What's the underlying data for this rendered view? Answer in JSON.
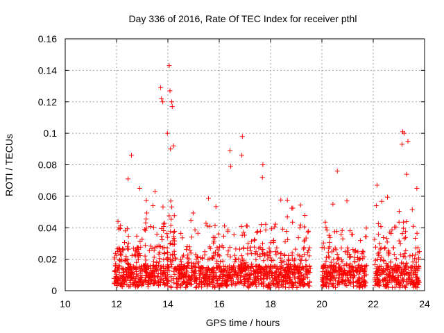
{
  "chart_data": {
    "type": "scatter",
    "title": "Day 336 of 2016, Rate Of TEC Index for receiver pthl",
    "xlabel": "GPS time / hours",
    "ylabel": "ROTI / TECUs",
    "xlim": [
      10,
      24
    ],
    "ylim": [
      0,
      0.16
    ],
    "xticks": [
      "10",
      "12",
      "14",
      "16",
      "18",
      "20",
      "22",
      "24"
    ],
    "yticks": [
      "0",
      "0.02",
      "0.04",
      "0.06",
      "0.08",
      "0.1",
      "0.12",
      "0.14",
      "0.16"
    ],
    "grid": true,
    "marker": "+",
    "color": "#ff0000",
    "segments": [
      {
        "start": 11.9,
        "end": 19.55
      },
      {
        "start": 20.0,
        "end": 21.75
      },
      {
        "start": 22.05,
        "end": 23.8
      }
    ],
    "highlight_points": [
      {
        "x": 14.05,
        "y": 0.143
      },
      {
        "x": 13.72,
        "y": 0.129
      },
      {
        "x": 13.75,
        "y": 0.122
      },
      {
        "x": 13.8,
        "y": 0.12
      },
      {
        "x": 14.08,
        "y": 0.127
      },
      {
        "x": 14.15,
        "y": 0.12
      },
      {
        "x": 14.17,
        "y": 0.117
      },
      {
        "x": 13.98,
        "y": 0.1
      },
      {
        "x": 16.9,
        "y": 0.098
      },
      {
        "x": 16.88,
        "y": 0.086
      },
      {
        "x": 16.42,
        "y": 0.089
      },
      {
        "x": 23.15,
        "y": 0.101
      },
      {
        "x": 23.2,
        "y": 0.1
      },
      {
        "x": 23.12,
        "y": 0.093
      },
      {
        "x": 23.35,
        "y": 0.095
      },
      {
        "x": 12.58,
        "y": 0.086
      },
      {
        "x": 14.1,
        "y": 0.09
      },
      {
        "x": 14.22,
        "y": 0.092
      },
      {
        "x": 17.7,
        "y": 0.08
      },
      {
        "x": 17.68,
        "y": 0.072
      },
      {
        "x": 16.45,
        "y": 0.079
      },
      {
        "x": 20.6,
        "y": 0.076
      },
      {
        "x": 22.15,
        "y": 0.067
      },
      {
        "x": 22.12,
        "y": 0.054
      },
      {
        "x": 23.3,
        "y": 0.074
      },
      {
        "x": 23.7,
        "y": 0.065
      },
      {
        "x": 12.45,
        "y": 0.071
      },
      {
        "x": 12.9,
        "y": 0.065
      },
      {
        "x": 13.5,
        "y": 0.063
      }
    ]
  }
}
